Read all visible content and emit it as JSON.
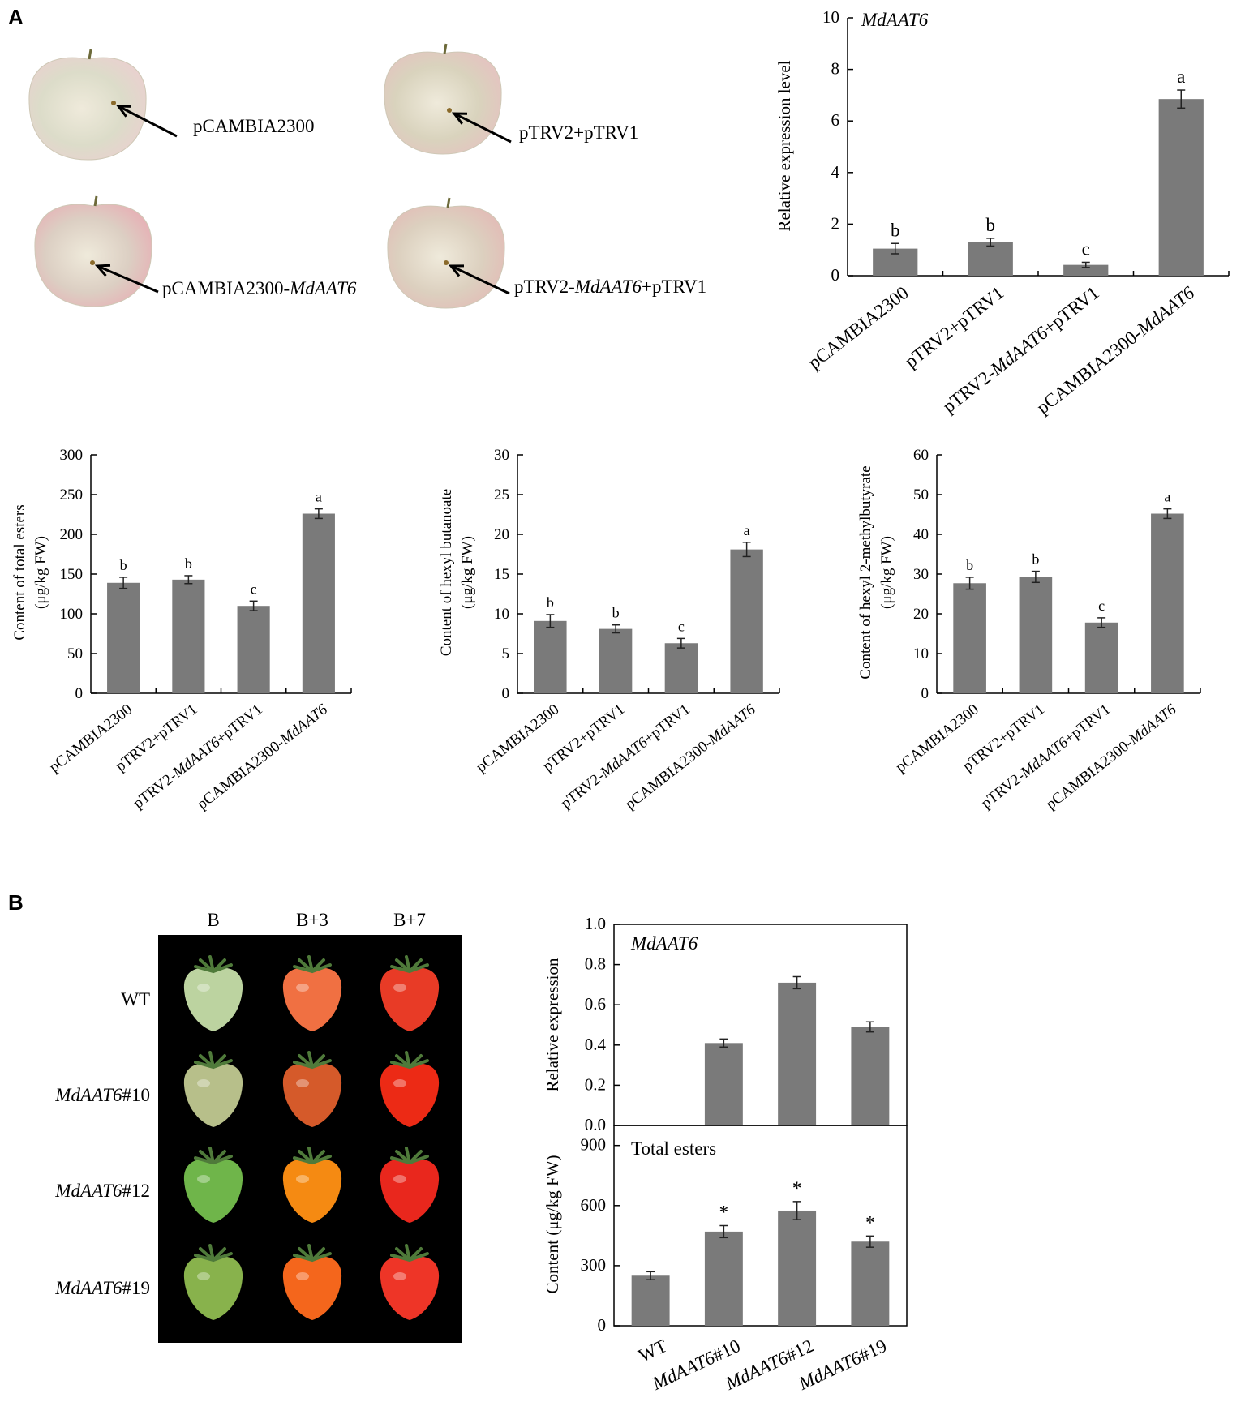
{
  "panels": {
    "a": "A",
    "b": "B"
  },
  "apples": {
    "items": [
      {
        "label": "pCAMBIA2300",
        "skin": "#dcdcc9",
        "blush": "#e9d1cf"
      },
      {
        "label": "pTRV2+pTRV1",
        "skin": "#d9d3bd",
        "blush": "#e4c4c0"
      },
      {
        "label": "pCAMBIA2300-MdAAT6",
        "skin": "#dccfc3",
        "blush": "#e6b2b6"
      },
      {
        "label": "pTRV2-MdAAT6+pTRV1",
        "skin": "#dcd0bf",
        "blush": "#e2bdb7"
      }
    ]
  },
  "tomato_photo": {
    "columns": [
      "B",
      "B+3",
      "B+7"
    ],
    "rows": [
      "WT",
      "MdAAT6#10",
      "MdAAT6#12",
      "MdAAT6#19"
    ],
    "fruit_colors": [
      [
        "#bcd3a0",
        "#f07042",
        "#e83b26"
      ],
      [
        "#b7bf8a",
        "#d55a2a",
        "#ec2a15"
      ],
      [
        "#6fb54a",
        "#f58a12",
        "#e9271d"
      ],
      [
        "#88b24c",
        "#f4661c",
        "#ee3527"
      ]
    ]
  },
  "chart_data": [
    {
      "id": "a-expression",
      "type": "bar",
      "title": "MdAAT6",
      "ylabel": "Relative expression level",
      "ylim": [
        0,
        10
      ],
      "yticks": [
        "0",
        "2",
        "4",
        "6",
        "8",
        "10"
      ],
      "categories": [
        "pCAMBIA2300",
        "pTRV2+pTRV1",
        "pTRV2-MdAAT6+pTRV1",
        "pCAMBIA2300-MdAAT6"
      ],
      "values": [
        1.05,
        1.3,
        0.42,
        6.85
      ],
      "errors": [
        0.2,
        0.15,
        0.1,
        0.35
      ],
      "significance": [
        "b",
        "b",
        "c",
        "a"
      ]
    },
    {
      "id": "a-total-esters",
      "type": "bar",
      "ylabel": [
        "Content of total esters",
        "(μg/kg FW)"
      ],
      "ylim": [
        0,
        300
      ],
      "yticks": [
        "0",
        "50",
        "100",
        "150",
        "200",
        "250",
        "300"
      ],
      "categories": [
        "pCAMBIA2300",
        "pTRV2+pTRV1",
        "pTRV2-MdAAT6+pTRV1",
        "pCAMBIA2300-MdAAT6"
      ],
      "values": [
        139,
        143,
        110,
        226
      ],
      "errors": [
        7,
        5,
        6,
        6
      ],
      "significance": [
        "b",
        "b",
        "c",
        "a"
      ]
    },
    {
      "id": "a-hexyl-butanoate",
      "type": "bar",
      "ylabel": [
        "Content of hexyl butanoate",
        "(μg/kg FW)"
      ],
      "ylim": [
        0,
        30
      ],
      "yticks": [
        "0",
        "5",
        "10",
        "15",
        "20",
        "25",
        "30"
      ],
      "categories": [
        "pCAMBIA2300",
        "pTRV2+pTRV1",
        "pTRV2-MdAAT6+pTRV1",
        "pCAMBIA2300-MdAAT6"
      ],
      "values": [
        9.1,
        8.1,
        6.3,
        18.1
      ],
      "errors": [
        0.8,
        0.5,
        0.6,
        0.9
      ],
      "significance": [
        "b",
        "b",
        "c",
        "a"
      ]
    },
    {
      "id": "a-hexyl-2-methylbutyrate",
      "type": "bar",
      "ylabel": [
        "Content of hexyl 2-methylbutyrate",
        "(μg/kg FW)"
      ],
      "ylim": [
        0,
        60
      ],
      "yticks": [
        "0",
        "10",
        "20",
        "30",
        "40",
        "50",
        "60"
      ],
      "categories": [
        "pCAMBIA2300",
        "pTRV2+pTRV1",
        "pTRV2-MdAAT6+pTRV1",
        "pCAMBIA2300-MdAAT6"
      ],
      "values": [
        27.7,
        29.3,
        17.8,
        45.2
      ],
      "errors": [
        1.5,
        1.4,
        1.2,
        1.2
      ],
      "significance": [
        "b",
        "b",
        "c",
        "a"
      ]
    },
    {
      "id": "b-relative-expression",
      "type": "bar",
      "title": "MdAAT6",
      "ylabel": "Relative expression",
      "ylim": [
        0,
        1.0
      ],
      "yticks": [
        "0.0",
        "0.2",
        "0.4",
        "0.6",
        "0.8",
        "1.0"
      ],
      "categories": [
        "WT",
        "MdAAT6#10",
        "MdAAT6#12",
        "MdAAT6#19"
      ],
      "values": [
        0,
        0.41,
        0.71,
        0.49
      ],
      "errors": [
        0,
        0.02,
        0.03,
        0.025
      ],
      "significance": [
        "",
        "",
        "",
        ""
      ]
    },
    {
      "id": "b-total-esters",
      "type": "bar",
      "title": "Total esters",
      "ylabel": "Content (μg/kg FW)",
      "ylim": [
        0,
        1000
      ],
      "yticks": [
        "0",
        "300",
        "600",
        "900"
      ],
      "categories": [
        "WT",
        "MdAAT6#10",
        "MdAAT6#12",
        "MdAAT6#19"
      ],
      "values": [
        250,
        470,
        575,
        420
      ],
      "errors": [
        20,
        30,
        45,
        28
      ],
      "significance": [
        "",
        "*",
        "*",
        "*"
      ]
    }
  ]
}
